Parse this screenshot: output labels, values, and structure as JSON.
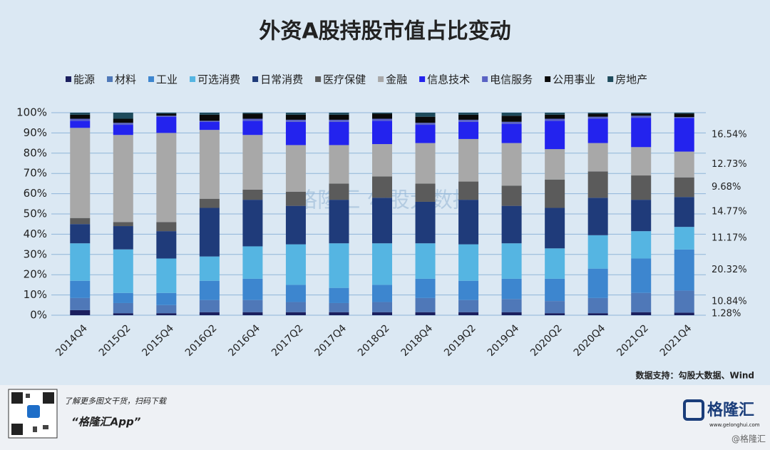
{
  "chart_data": {
    "type": "stacked-bar",
    "title": "外资A股持股市值占比变动",
    "categories": [
      "2014Q4",
      "2015Q2",
      "2015Q4",
      "2016Q2",
      "2016Q4",
      "2017Q2",
      "2017Q4",
      "2018Q2",
      "2018Q4",
      "2019Q2",
      "2019Q4",
      "2020Q2",
      "2020Q4",
      "2021Q2",
      "2021Q4"
    ],
    "ylim": [
      0,
      100
    ],
    "yticks": [
      {
        "value": 0,
        "label": "0%"
      },
      {
        "value": 10,
        "label": "10%"
      },
      {
        "value": 20,
        "label": "20%"
      },
      {
        "value": 30,
        "label": "30%"
      },
      {
        "value": 40,
        "label": "40%"
      },
      {
        "value": 50,
        "label": "50%"
      },
      {
        "value": 60,
        "label": "60%"
      },
      {
        "value": 70,
        "label": "70%"
      },
      {
        "value": 80,
        "label": "80%"
      },
      {
        "value": 90,
        "label": "90%"
      },
      {
        "value": 100,
        "label": "100%"
      }
    ],
    "grid": true,
    "series": [
      {
        "name": "能源",
        "color": "#1b1f5e",
        "values": [
          2.5,
          1,
          1,
          1.5,
          1.5,
          1.5,
          1.5,
          1.5,
          1.5,
          1.5,
          1.5,
          1,
          1,
          1.5,
          1.28
        ],
        "value_labels": [
          null,
          null,
          null,
          null,
          null,
          null,
          null,
          null,
          null,
          null,
          null,
          null,
          null,
          null,
          "1.28%"
        ]
      },
      {
        "name": "材料",
        "color": "#4f78b8",
        "values": [
          6,
          5,
          4,
          6,
          6,
          5,
          4.5,
          5,
          7,
          6,
          6.5,
          6,
          7.5,
          9.5,
          10.84
        ],
        "value_labels": [
          null,
          null,
          null,
          null,
          null,
          null,
          null,
          null,
          null,
          null,
          null,
          null,
          null,
          null,
          "10.84%"
        ]
      },
      {
        "name": "工业",
        "color": "#3d86cf",
        "values": [
          8.5,
          5,
          6,
          9.5,
          10.5,
          8.5,
          7.5,
          8.5,
          9.5,
          9.5,
          10,
          11,
          14.5,
          17,
          20.32
        ],
        "value_labels": [
          null,
          null,
          null,
          null,
          null,
          null,
          null,
          null,
          null,
          null,
          null,
          null,
          null,
          null,
          "20.32%"
        ]
      },
      {
        "name": "可选消费",
        "color": "#55b5e2",
        "values": [
          18.5,
          21.5,
          17,
          12,
          16,
          20,
          22,
          20.5,
          17.5,
          18,
          17.5,
          15,
          16.5,
          13.5,
          11.17
        ],
        "value_labels": [
          null,
          null,
          null,
          null,
          null,
          null,
          null,
          null,
          null,
          null,
          null,
          null,
          null,
          null,
          "11.17%"
        ]
      },
      {
        "name": "日常消费",
        "color": "#1f3b7a",
        "values": [
          9.5,
          11.5,
          13.5,
          24,
          23,
          19,
          21.5,
          22.5,
          20.5,
          22,
          18.5,
          20,
          18.5,
          15.5,
          14.77
        ],
        "value_labels": [
          null,
          null,
          null,
          null,
          null,
          null,
          null,
          null,
          null,
          null,
          null,
          null,
          null,
          null,
          "14.77%"
        ]
      },
      {
        "name": "医疗保健",
        "color": "#5b5b5b",
        "values": [
          3,
          2,
          4.5,
          4.5,
          5,
          7,
          8,
          10.5,
          9,
          9,
          10,
          14,
          13,
          12,
          9.68
        ],
        "value_labels": [
          null,
          null,
          null,
          null,
          null,
          null,
          null,
          null,
          null,
          null,
          null,
          null,
          null,
          null,
          "9.68%"
        ]
      },
      {
        "name": "金融",
        "color": "#a8a8a8",
        "values": [
          44.5,
          43,
          44,
          34,
          27,
          23,
          19,
          16,
          20,
          21,
          21,
          15,
          14,
          14,
          12.73
        ],
        "value_labels": [
          null,
          null,
          null,
          null,
          null,
          null,
          null,
          null,
          null,
          null,
          null,
          null,
          null,
          null,
          "12.73%"
        ]
      },
      {
        "name": "信息技术",
        "color": "#2323ee",
        "values": [
          3.5,
          5,
          8,
          4,
          7,
          11.5,
          11.5,
          11.5,
          9,
          8.5,
          9.5,
          14,
          12,
          14.5,
          16.54
        ],
        "value_labels": [
          null,
          null,
          null,
          null,
          null,
          null,
          null,
          null,
          null,
          null,
          null,
          null,
          null,
          null,
          "16.54%"
        ]
      },
      {
        "name": "电信服务",
        "color": "#5a63c4",
        "values": [
          1,
          1,
          0.5,
          0.5,
          1,
          1,
          1,
          1,
          1,
          1,
          1,
          1,
          1,
          1,
          0.5
        ]
      },
      {
        "name": "公用事业",
        "color": "#0a0a0a",
        "values": [
          2,
          2,
          1,
          3,
          2.5,
          2.5,
          2.5,
          2.5,
          3,
          2.5,
          3,
          2,
          1.5,
          1,
          1.7
        ]
      },
      {
        "name": "房地产",
        "color": "#1e4b5c",
        "values": [
          1,
          3,
          0.5,
          1,
          0.5,
          1,
          1,
          0.5,
          2,
          1,
          1.5,
          1,
          0.5,
          0.5,
          0.47
        ]
      }
    ],
    "watermark": "格隆汇  勾股大数据",
    "source": "数据支持：勾股大数据、Wind"
  },
  "footer": {
    "promo": "了解更多图文干货，扫码下载",
    "app": "“格隆汇App”",
    "logo": "格隆汇",
    "site": "www.gelonghui.com",
    "handle": "@格隆汇"
  }
}
